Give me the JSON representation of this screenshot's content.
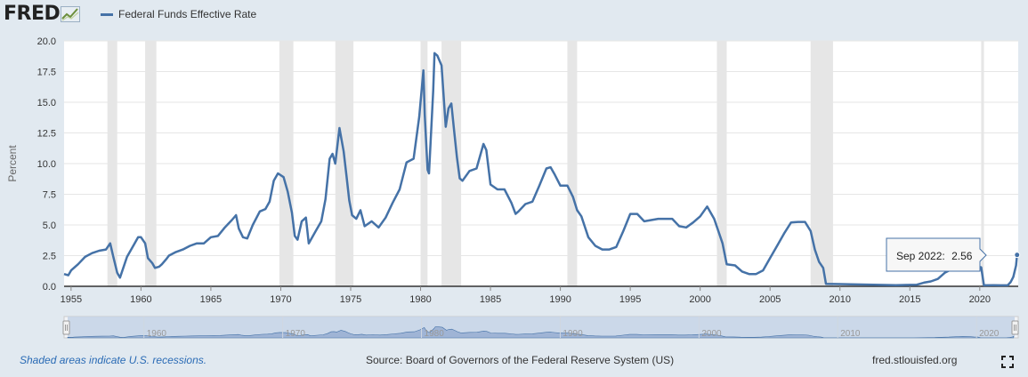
{
  "header": {
    "logo_text": "FRED",
    "legend_label": "Federal Funds Effective Rate"
  },
  "footer": {
    "note": "Shaded areas indicate U.S. recessions.",
    "source": "Source: Board of Governors of the Federal Reserve System (US)",
    "site": "fred.stlouisfed.org"
  },
  "tooltip": {
    "date": "Sep 2022:",
    "value": "2.56"
  },
  "colors": {
    "series": "#4572a7",
    "recession": "#e6e6e6",
    "background": "#e1e9f0",
    "navigator_mask": "#c4d2e6"
  },
  "icons": {
    "logo": "fred-chart-logo-icon",
    "fullscreen": "fullscreen-icon"
  },
  "navigator": {
    "tick_labels": [
      "1960",
      "1970",
      "1980",
      "1990",
      "2000",
      "2010",
      "2020"
    ]
  },
  "chart_data": {
    "type": "line",
    "ylabel": "Percent",
    "ylim": [
      0,
      20
    ],
    "xlim": [
      1954.5,
      2022.75
    ],
    "grid": true,
    "legend": "top-left",
    "yticks": [
      0.0,
      2.5,
      5.0,
      7.5,
      10.0,
      12.5,
      15.0,
      17.5,
      20.0
    ],
    "ytick_labels": [
      "0.0",
      "2.5",
      "5.0",
      "7.5",
      "10.0",
      "12.5",
      "15.0",
      "17.5",
      "20.0"
    ],
    "xticks": [
      1955,
      1960,
      1965,
      1970,
      1975,
      1980,
      1985,
      1990,
      1995,
      2000,
      2005,
      2010,
      2015,
      2020
    ],
    "xtick_labels": [
      "1955",
      "1960",
      "1965",
      "1970",
      "1975",
      "1980",
      "1985",
      "1990",
      "1995",
      "2000",
      "2005",
      "2010",
      "2015",
      "2020"
    ],
    "recessions": [
      [
        1957.6,
        1958.3
      ],
      [
        1960.3,
        1961.1
      ],
      [
        1969.9,
        1970.9
      ],
      [
        1973.9,
        1975.2
      ],
      [
        1980.0,
        1980.5
      ],
      [
        1981.5,
        1982.9
      ],
      [
        1990.5,
        1991.2
      ],
      [
        2001.2,
        2001.9
      ],
      [
        2007.9,
        2009.5
      ],
      [
        2020.1,
        2020.3
      ]
    ],
    "series": [
      {
        "name": "Federal Funds Effective Rate",
        "x": [
          1954.5,
          1954.8,
          1955.0,
          1955.5,
          1956.0,
          1956.5,
          1957.0,
          1957.5,
          1957.8,
          1958.0,
          1958.3,
          1958.5,
          1959.0,
          1959.5,
          1959.8,
          1960.0,
          1960.3,
          1960.5,
          1960.8,
          1961.0,
          1961.3,
          1961.5,
          1961.8,
          1962.0,
          1962.5,
          1963.0,
          1963.5,
          1964.0,
          1964.5,
          1965.0,
          1965.5,
          1966.0,
          1966.5,
          1966.8,
          1967.0,
          1967.3,
          1967.6,
          1968.0,
          1968.5,
          1968.9,
          1969.2,
          1969.5,
          1969.8,
          1970.2,
          1970.5,
          1970.8,
          1971.0,
          1971.2,
          1971.5,
          1971.8,
          1972.0,
          1972.5,
          1972.9,
          1973.2,
          1973.5,
          1973.7,
          1973.9,
          1974.2,
          1974.5,
          1974.7,
          1974.9,
          1975.1,
          1975.4,
          1975.7,
          1976.0,
          1976.5,
          1977.0,
          1977.5,
          1978.0,
          1978.5,
          1979.0,
          1979.5,
          1979.9,
          1980.2,
          1980.3,
          1980.5,
          1980.6,
          1980.9,
          1981.0,
          1981.2,
          1981.5,
          1981.8,
          1982.0,
          1982.2,
          1982.4,
          1982.6,
          1982.8,
          1983.0,
          1983.5,
          1984.0,
          1984.5,
          1984.7,
          1985.0,
          1985.5,
          1986.0,
          1986.5,
          1986.8,
          1987.0,
          1987.5,
          1988.0,
          1988.5,
          1989.0,
          1989.3,
          1989.6,
          1990.0,
          1990.5,
          1990.9,
          1991.2,
          1991.5,
          1992.0,
          1992.5,
          1993.0,
          1993.5,
          1994.0,
          1994.5,
          1995.0,
          1995.5,
          1996.0,
          1997.0,
          1998.0,
          1998.5,
          1999.0,
          1999.5,
          2000.0,
          2000.5,
          2001.0,
          2001.3,
          2001.6,
          2001.9,
          2002.5,
          2003.0,
          2003.5,
          2004.0,
          2004.5,
          2005.0,
          2005.5,
          2006.0,
          2006.5,
          2007.0,
          2007.5,
          2007.9,
          2008.2,
          2008.5,
          2008.8,
          2009.0,
          2010.0,
          2012.0,
          2014.0,
          2015.5,
          2016.0,
          2016.5,
          2017.0,
          2017.5,
          2018.0,
          2018.5,
          2019.0,
          2019.5,
          2019.8,
          2020.1,
          2020.3,
          2021.0,
          2021.5,
          2022.0,
          2022.2,
          2022.4,
          2022.6,
          2022.67
        ],
        "y": [
          1.0,
          0.9,
          1.3,
          1.8,
          2.4,
          2.7,
          2.9,
          3.0,
          3.5,
          2.5,
          1.1,
          0.7,
          2.4,
          3.4,
          4.0,
          4.0,
          3.5,
          2.3,
          1.9,
          1.5,
          1.6,
          1.8,
          2.2,
          2.5,
          2.8,
          3.0,
          3.3,
          3.5,
          3.5,
          4.0,
          4.1,
          4.8,
          5.4,
          5.8,
          4.7,
          4.0,
          3.9,
          5.0,
          6.1,
          6.3,
          6.9,
          8.6,
          9.2,
          8.9,
          7.7,
          6.0,
          4.1,
          3.8,
          5.3,
          5.6,
          3.5,
          4.5,
          5.3,
          7.1,
          10.4,
          10.8,
          10.0,
          12.9,
          11.0,
          9.0,
          7.0,
          5.8,
          5.5,
          6.2,
          4.9,
          5.3,
          4.8,
          5.6,
          6.8,
          7.9,
          10.1,
          10.4,
          13.8,
          17.6,
          14.0,
          9.5,
          9.2,
          15.9,
          19.0,
          18.8,
          18.0,
          13.0,
          14.5,
          14.9,
          12.7,
          10.5,
          8.8,
          8.6,
          9.4,
          9.6,
          11.6,
          11.1,
          8.3,
          7.9,
          7.9,
          6.8,
          5.9,
          6.1,
          6.7,
          6.9,
          8.2,
          9.6,
          9.7,
          9.1,
          8.2,
          8.2,
          7.3,
          6.2,
          5.7,
          4.0,
          3.3,
          3.0,
          3.0,
          3.2,
          4.5,
          5.9,
          5.9,
          5.3,
          5.5,
          5.5,
          4.9,
          4.8,
          5.2,
          5.7,
          6.5,
          5.5,
          4.5,
          3.5,
          1.8,
          1.7,
          1.2,
          1.0,
          1.0,
          1.3,
          2.3,
          3.3,
          4.3,
          5.2,
          5.25,
          5.25,
          4.5,
          3.0,
          2.0,
          1.5,
          0.2,
          0.18,
          0.14,
          0.09,
          0.13,
          0.3,
          0.4,
          0.6,
          1.1,
          1.4,
          1.9,
          2.4,
          2.1,
          1.6,
          1.55,
          0.08,
          0.09,
          0.08,
          0.08,
          0.33,
          0.77,
          1.7,
          2.56
        ]
      }
    ]
  }
}
